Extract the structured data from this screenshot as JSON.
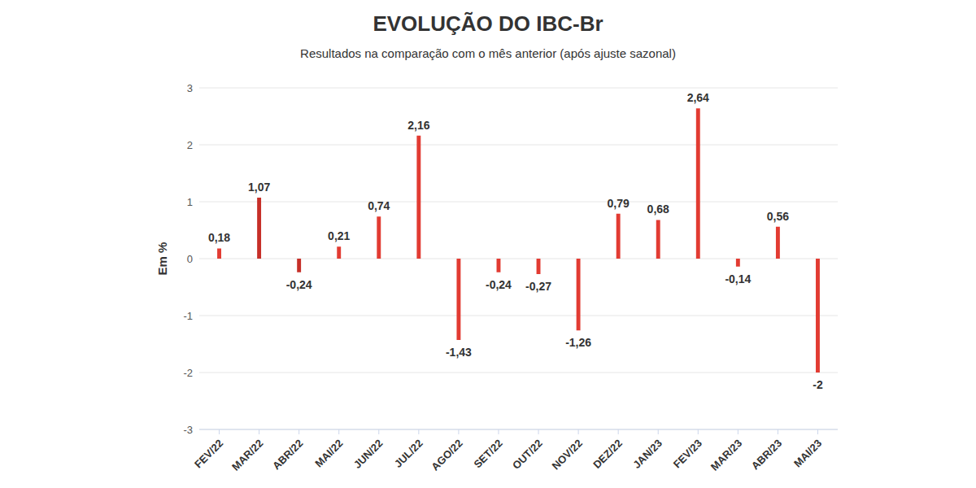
{
  "chart_data": {
    "type": "bar",
    "title": "EVOLUÇÃO DO IBC-Br",
    "subtitle": "Resultados na comparação com o mês anterior (após ajuste sazonal)",
    "ylabel": "Em %",
    "categories": [
      "FEV/22",
      "MAR/22",
      "ABR/22",
      "MAI/22",
      "JUN/22",
      "JUL/22",
      "AGO/22",
      "SET/22",
      "OUT/22",
      "NOV/22",
      "DEZ/22",
      "JAN/23",
      "FEV/23",
      "MAR/23",
      "ABR/23",
      "MAI/23"
    ],
    "values": [
      0.18,
      1.07,
      -0.24,
      0.21,
      0.74,
      2.16,
      -1.43,
      -0.24,
      -0.27,
      -1.26,
      0.79,
      0.68,
      2.64,
      -0.14,
      0.56,
      -2
    ],
    "value_labels": [
      "0,18",
      "1,07",
      "-0,24",
      "0,21",
      "0,74",
      "2,16",
      "-1,43",
      "-0,24",
      "-0,27",
      "-1,26",
      "0,79",
      "0,68",
      "2,64",
      "-0,14",
      "0,56",
      "-2"
    ],
    "colors": [
      "#e23b32",
      "#c62f28",
      "#c62f28",
      "#e23b32",
      "#e23b32",
      "#e23b32",
      "#e23b32",
      "#e23b32",
      "#e23b32",
      "#e23b32",
      "#e23b32",
      "#e23b32",
      "#e23b32",
      "#e23b32",
      "#e23b32",
      "#e23b32"
    ],
    "ylim": [
      -3,
      3
    ],
    "yticks": [
      -3,
      -2,
      -1,
      0,
      1,
      2,
      3
    ],
    "grid": true,
    "data_labels": true
  }
}
